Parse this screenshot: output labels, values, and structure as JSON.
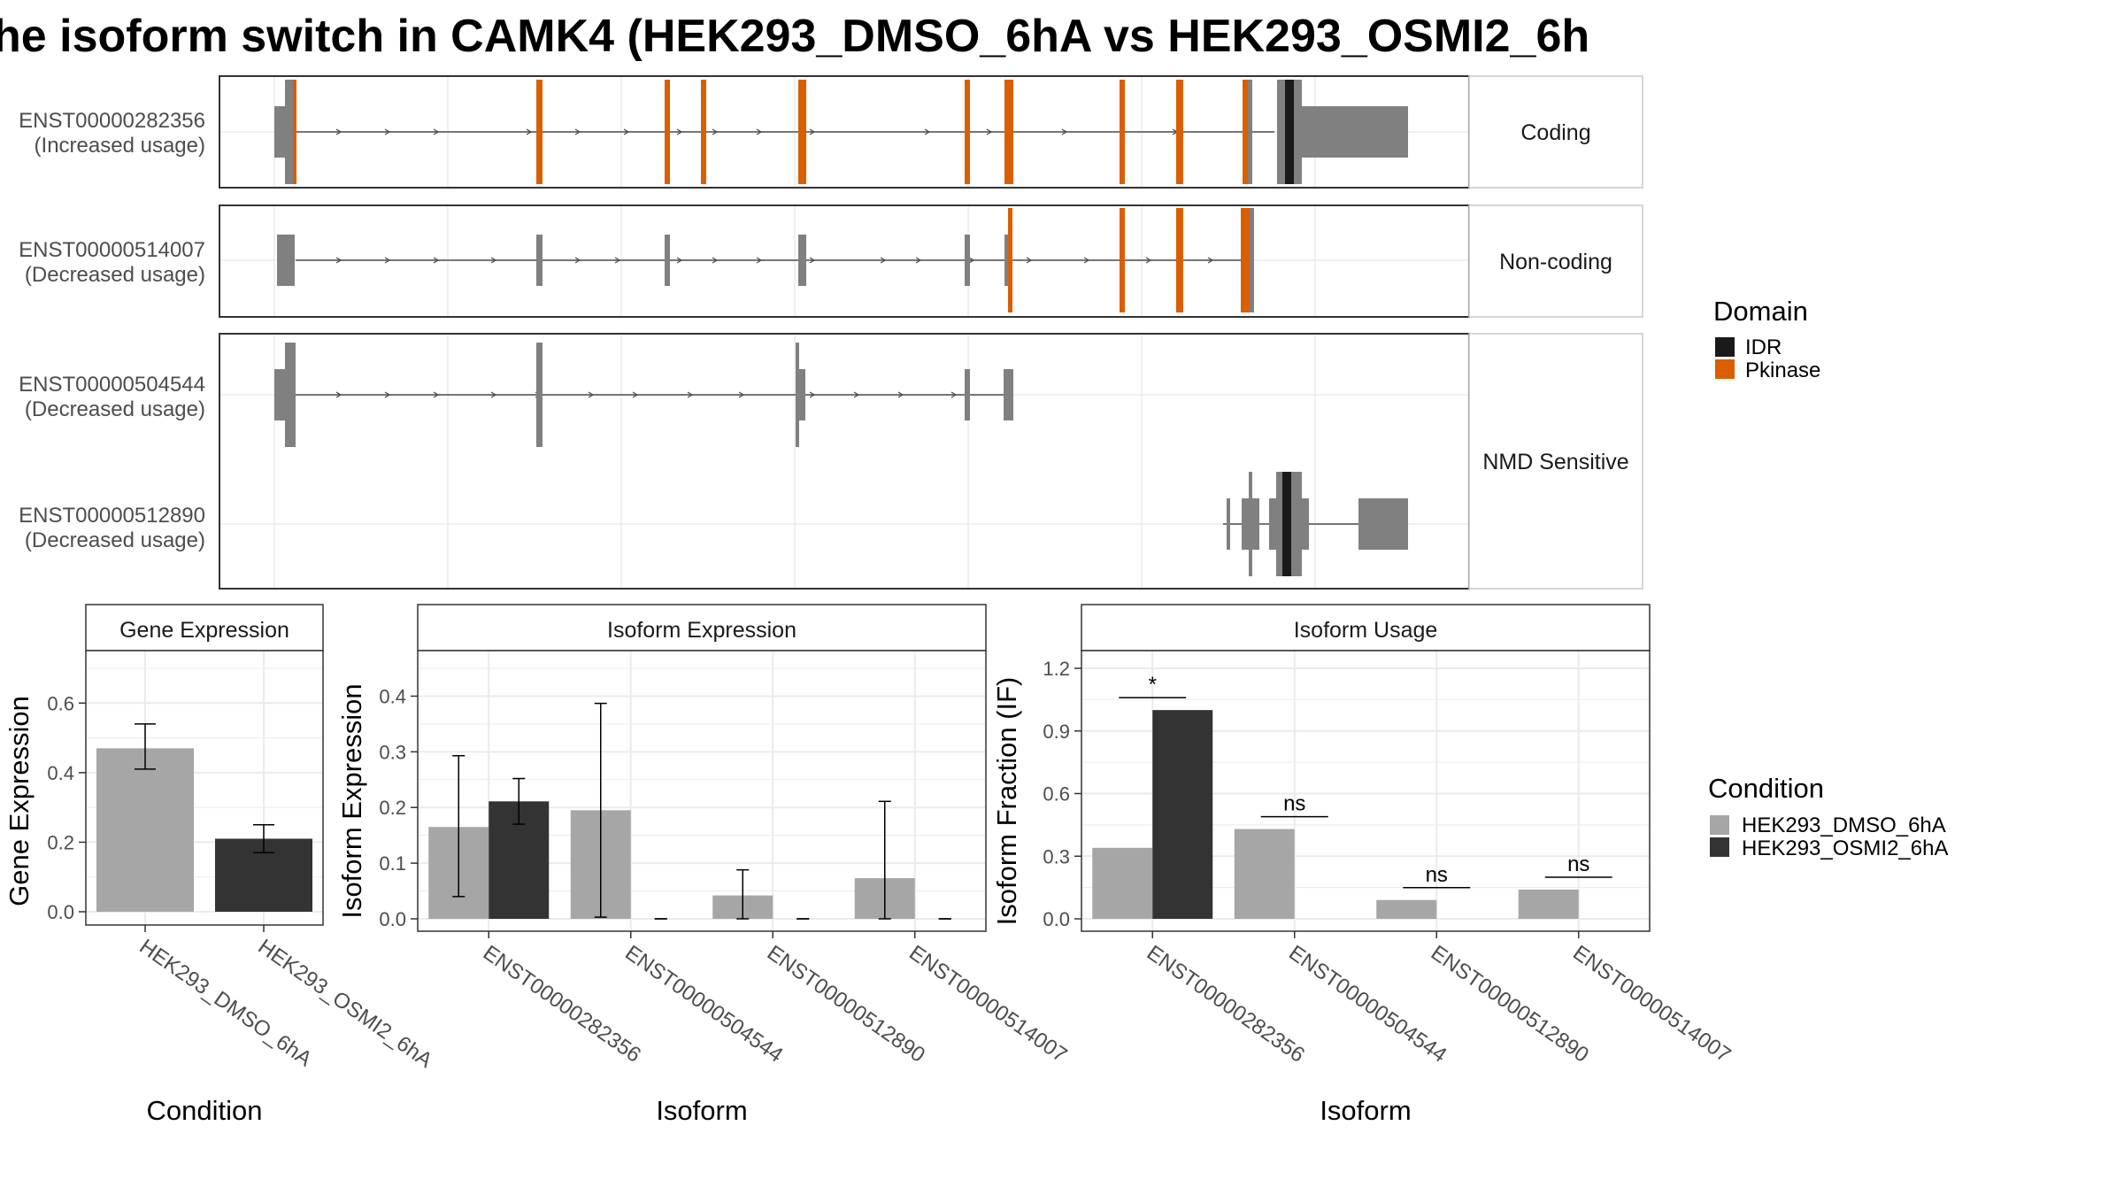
{
  "title": "he isoform switch in CAMK4 (HEK293_DMSO_6hA vs HEK293_OSMI2_6h",
  "colors": {
    "exon": "#808080",
    "idr": "#1a1a1a",
    "pkinase": "#d95f02",
    "dmso": "#a6a6a6",
    "osmi": "#333333",
    "strip_bg": "#ffffff",
    "grid": "#ebebeb"
  },
  "structure_panel": {
    "facets": [
      "Coding",
      "Non-coding",
      "NMD Sensitive"
    ],
    "isoforms": [
      {
        "id": "ENST00000282356",
        "usage": "(Increased usage)",
        "facet": "Coding"
      },
      {
        "id": "ENST00000514007",
        "usage": "(Decreased usage)",
        "facet": "Non-coding"
      },
      {
        "id": "ENST00000504544",
        "usage": "(Decreased usage)",
        "facet": "NMD Sensitive"
      },
      {
        "id": "ENST00000512890",
        "usage": "(Decreased usage)",
        "facet": "NMD Sensitive"
      }
    ],
    "legend": {
      "title": "Domain",
      "items": [
        {
          "label": "IDR",
          "color": "#1a1a1a"
        },
        {
          "label": "Pkinase",
          "color": "#d95f02"
        }
      ]
    }
  },
  "chart_data": [
    {
      "type": "bar",
      "title": "Gene Expression",
      "xlabel": "Condition",
      "ylabel": "Gene Expression",
      "categories": [
        "HEK293_DMSO_6hA",
        "HEK293_OSMI2_6hA"
      ],
      "values": [
        0.47,
        0.21
      ],
      "error_low": [
        0.41,
        0.17
      ],
      "error_high": [
        0.54,
        0.25
      ],
      "ylim": [
        0,
        0.7
      ],
      "yticks": [
        "0.0",
        "0.2",
        "0.4",
        "0.6"
      ]
    },
    {
      "type": "bar",
      "title": "Isoform Expression",
      "xlabel": "Isoform",
      "ylabel": "Isoform Expression",
      "categories": [
        "ENST00000282356",
        "ENST00000504544",
        "ENST00000512890",
        "ENST00000514007"
      ],
      "series": [
        {
          "name": "HEK293_DMSO_6hA",
          "values": [
            0.165,
            0.195,
            0.042,
            0.073
          ],
          "error_low": [
            0.04,
            0.003,
            0.0,
            0.0
          ],
          "error_high": [
            0.293,
            0.387,
            0.088,
            0.211
          ]
        },
        {
          "name": "HEK293_OSMI2_6hA",
          "values": [
            0.211,
            0.0,
            0.0,
            0.0
          ],
          "error_low": [
            0.17,
            0.0,
            0.0,
            0.0
          ],
          "error_high": [
            0.252,
            0.0,
            0.0,
            0.0
          ]
        }
      ],
      "ylim": [
        0,
        0.45
      ],
      "yticks": [
        "0.0",
        "0.1",
        "0.2",
        "0.3",
        "0.4"
      ]
    },
    {
      "type": "bar",
      "title": "Isoform Usage",
      "xlabel": "Isoform",
      "ylabel": "Isoform Fraction (IF)",
      "categories": [
        "ENST00000282356",
        "ENST00000504544",
        "ENST00000512890",
        "ENST00000514007"
      ],
      "series": [
        {
          "name": "HEK293_DMSO_6hA",
          "values": [
            0.34,
            0.43,
            0.09,
            0.14
          ]
        },
        {
          "name": "HEK293_OSMI2_6hA",
          "values": [
            1.0,
            0.0,
            0.0,
            0.0
          ]
        }
      ],
      "significance": [
        "*",
        "ns",
        "ns",
        "ns"
      ],
      "ylim": [
        0,
        1.2
      ],
      "yticks": [
        "0.0",
        "0.3",
        "0.6",
        "0.9",
        "1.2"
      ]
    }
  ],
  "condition_legend": {
    "title": "Condition",
    "items": [
      {
        "label": "HEK293_DMSO_6hA",
        "color": "#a6a6a6"
      },
      {
        "label": "HEK293_OSMI2_6hA",
        "color": "#333333"
      }
    ]
  }
}
